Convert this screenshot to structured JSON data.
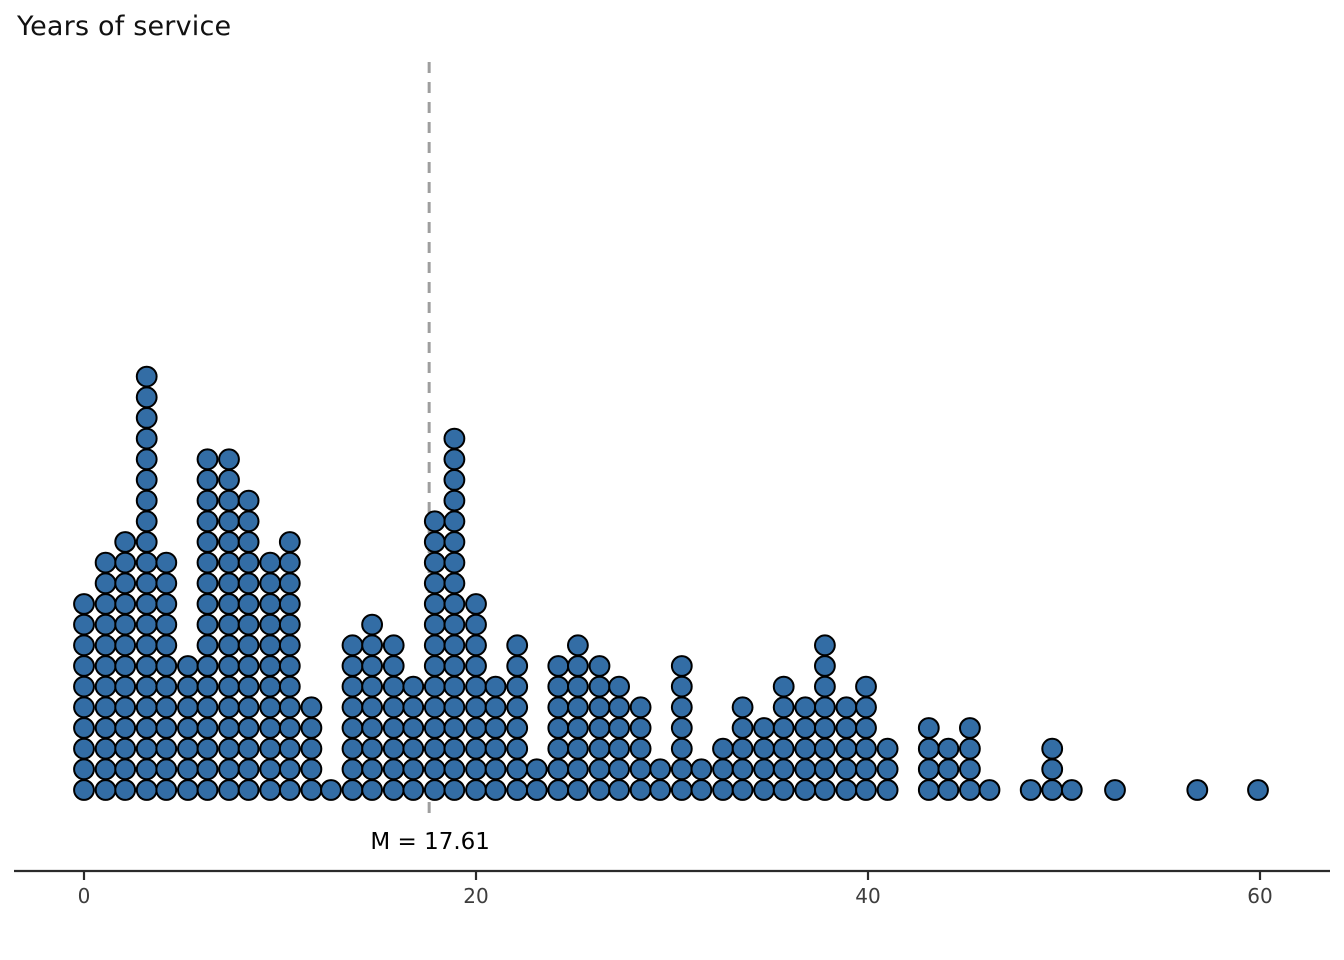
{
  "page": {
    "title": "Years of service"
  },
  "chart_data": {
    "type": "dotplot",
    "title": "Years of service",
    "xlabel": "",
    "ylabel": "",
    "x": [
      0.0,
      1.1,
      2.1,
      3.2,
      4.2,
      5.3,
      6.3,
      7.4,
      8.4,
      9.5,
      10.5,
      11.6,
      12.6,
      13.7,
      14.7,
      15.8,
      16.8,
      17.9,
      18.9,
      20.0,
      21.0,
      22.1,
      23.1,
      24.2,
      25.2,
      26.3,
      27.3,
      28.4,
      29.4,
      30.5,
      31.5,
      32.6,
      33.6,
      34.7,
      35.7,
      36.8,
      37.8,
      38.9,
      39.9,
      41.0,
      43.1,
      44.1,
      45.2,
      46.2,
      48.3,
      49.4,
      50.4,
      52.6,
      56.8,
      59.9
    ],
    "counts": [
      10,
      12,
      13,
      21,
      12,
      7,
      17,
      17,
      15,
      12,
      13,
      5,
      1,
      8,
      9,
      8,
      6,
      14,
      18,
      10,
      6,
      8,
      2,
      7,
      8,
      7,
      6,
      5,
      2,
      7,
      2,
      3,
      5,
      4,
      6,
      5,
      8,
      5,
      6,
      3,
      4,
      3,
      4,
      1,
      1,
      3,
      1,
      1,
      1,
      1
    ],
    "n_total": 353,
    "mean": 17.61,
    "mean_label": "M = 17.61",
    "xticks": [
      0,
      20,
      40,
      60
    ],
    "xlim": [
      -4.3,
      64.3
    ],
    "grid": "off",
    "legend": "none"
  },
  "style": {
    "dot_fill": "#336DA5",
    "dot_stroke": "#000000",
    "mean_line_color": "#9E9E9E",
    "mean_label_color": "#000000",
    "axis_color": "#2B2B2B",
    "tick_label_color": "#3D3D3D",
    "background": "#FFFFFF"
  }
}
